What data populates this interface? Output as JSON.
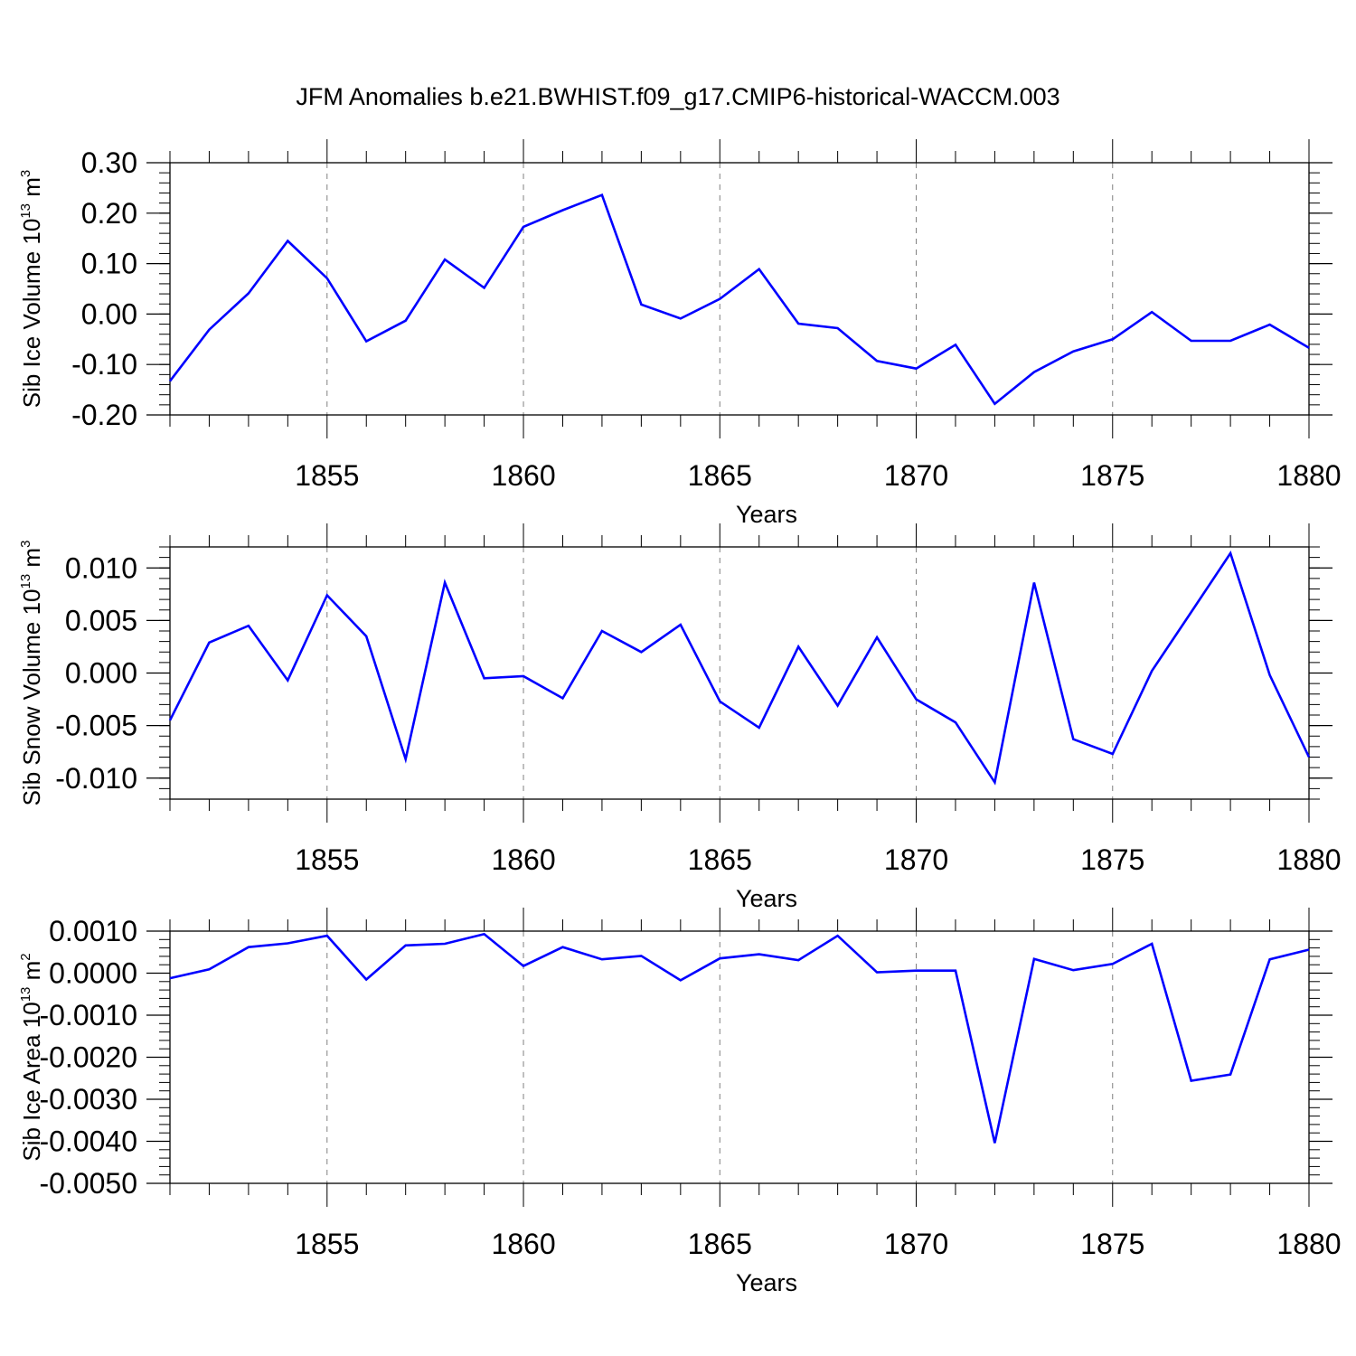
{
  "title": "JFM Anomalies b.e21.BWHIST.f09_g17.CMIP6-historical-WACCM.003",
  "colors": {
    "line": "#0000ff",
    "axis": "#000000",
    "grid": "#808080"
  },
  "chart_data": [
    {
      "type": "line",
      "xlabel": "Years",
      "ylabel_main": "Sib Ice Volume 10",
      "ylabel_exp": "13",
      "ylabel_unit": " m",
      "ylabel_unit_exp": "3",
      "xlim": [
        1851,
        1880
      ],
      "ylim": [
        -0.2,
        0.3
      ],
      "yticks": [
        -0.2,
        -0.1,
        0.0,
        0.1,
        0.2,
        0.3
      ],
      "ytick_labels": [
        "-0.20",
        "-0.10",
        "0.00",
        "0.10",
        "0.20",
        "0.30"
      ],
      "xticks": [
        1855,
        1860,
        1865,
        1870,
        1875,
        1880
      ],
      "xtick_labels": [
        "1855",
        "1860",
        "1865",
        "1870",
        "1875",
        "1880"
      ],
      "grid": "vertical dashed at major x ticks",
      "x": [
        1851,
        1852,
        1853,
        1854,
        1855,
        1856,
        1857,
        1858,
        1859,
        1860,
        1861,
        1862,
        1863,
        1864,
        1865,
        1866,
        1867,
        1868,
        1869,
        1870,
        1871,
        1872,
        1873,
        1874,
        1875,
        1876,
        1877,
        1878,
        1879,
        1880
      ],
      "series": [
        {
          "values": [
            -0.133,
            -0.031,
            0.041,
            0.145,
            0.071,
            -0.054,
            -0.013,
            0.108,
            0.052,
            0.173,
            0.206,
            0.236,
            0.019,
            -0.009,
            0.03,
            0.089,
            -0.019,
            -0.028,
            -0.093,
            -0.108,
            -0.061,
            -0.178,
            -0.115,
            -0.074,
            -0.05,
            0.004,
            -0.053,
            -0.053,
            -0.021,
            -0.067
          ]
        }
      ]
    },
    {
      "type": "line",
      "xlabel": "Years",
      "ylabel_main": "Sib Snow Volume 10",
      "ylabel_exp": "13",
      "ylabel_unit": " m",
      "ylabel_unit_exp": "3",
      "xlim": [
        1851,
        1880
      ],
      "ylim": [
        -0.012,
        0.012
      ],
      "yticks": [
        -0.01,
        -0.005,
        0.0,
        0.005,
        0.01
      ],
      "ytick_labels": [
        "-0.010",
        "-0.005",
        "0.000",
        "0.005",
        "0.010"
      ],
      "xticks": [
        1855,
        1860,
        1865,
        1870,
        1875,
        1880
      ],
      "xtick_labels": [
        "1855",
        "1860",
        "1865",
        "1870",
        "1875",
        "1880"
      ],
      "grid": "vertical dashed at major x ticks",
      "x": [
        1851,
        1852,
        1853,
        1854,
        1855,
        1856,
        1857,
        1858,
        1859,
        1860,
        1861,
        1862,
        1863,
        1864,
        1865,
        1866,
        1867,
        1868,
        1869,
        1870,
        1871,
        1872,
        1873,
        1874,
        1875,
        1876,
        1877,
        1878,
        1879,
        1880
      ],
      "series": [
        {
          "values": [
            -0.0045,
            0.0029,
            0.0045,
            -0.0007,
            0.0074,
            0.0035,
            -0.0082,
            0.0086,
            -0.0005,
            -0.0003,
            -0.0024,
            0.004,
            0.002,
            0.0046,
            -0.0027,
            -0.0052,
            0.0025,
            -0.0031,
            0.0034,
            -0.0025,
            -0.0047,
            -0.0104,
            0.0086,
            -0.0063,
            -0.0077,
            0.0002,
            0.0058,
            0.0114,
            -0.0002,
            -0.008
          ]
        }
      ]
    },
    {
      "type": "line",
      "xlabel": "Years",
      "ylabel_main": "Sib Ice Area 10",
      "ylabel_exp": "13",
      "ylabel_unit": " m",
      "ylabel_unit_exp": "2",
      "xlim": [
        1851,
        1880
      ],
      "ylim": [
        -0.005,
        0.001
      ],
      "yticks": [
        -0.005,
        -0.004,
        -0.003,
        -0.002,
        -0.001,
        0.0,
        0.001
      ],
      "ytick_labels": [
        "-0.0050",
        "-0.0040",
        "-0.0030",
        "-0.0020",
        "-0.0010",
        "0.0000",
        "0.0010"
      ],
      "xticks": [
        1855,
        1860,
        1865,
        1870,
        1875,
        1880
      ],
      "xtick_labels": [
        "1855",
        "1860",
        "1865",
        "1870",
        "1875",
        "1880"
      ],
      "grid": "vertical dashed at major x ticks",
      "x": [
        1851,
        1852,
        1853,
        1854,
        1855,
        1856,
        1857,
        1858,
        1859,
        1860,
        1861,
        1862,
        1863,
        1864,
        1865,
        1866,
        1867,
        1868,
        1869,
        1870,
        1871,
        1872,
        1873,
        1874,
        1875,
        1876,
        1877,
        1878,
        1879,
        1880
      ],
      "series": [
        {
          "values": [
            -0.00012,
            9e-05,
            0.00062,
            0.00071,
            0.00089,
            -0.00015,
            0.00066,
            0.0007,
            0.00093,
            0.00017,
            0.00062,
            0.00033,
            0.00041,
            -0.00017,
            0.00035,
            0.00045,
            0.00031,
            0.00089,
            2e-05,
            6e-05,
            6e-05,
            -0.00404,
            0.00034,
            7e-05,
            0.00022,
            0.0007,
            -0.00256,
            -0.00241,
            0.00033,
            0.00056
          ]
        }
      ]
    }
  ]
}
